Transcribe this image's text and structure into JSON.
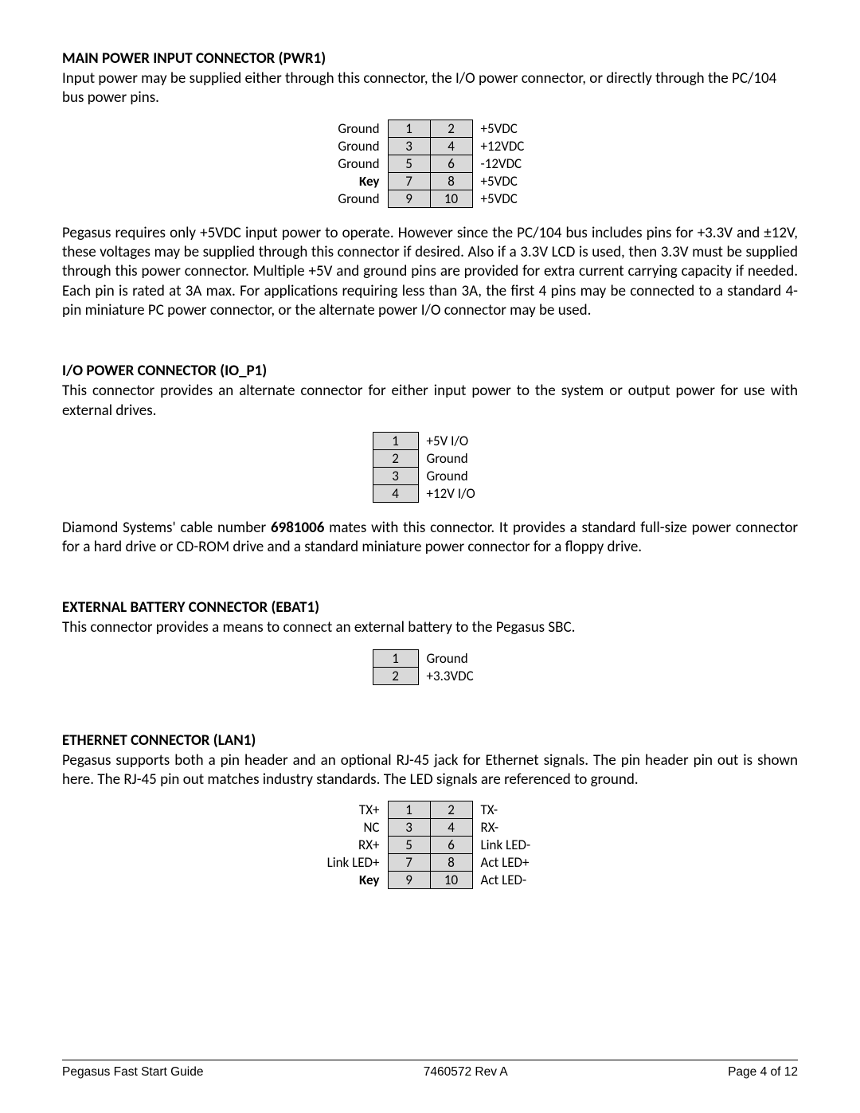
{
  "sections": {
    "pwr1": {
      "heading": "MAIN POWER INPUT CONNECTOR (PWR1)",
      "intro": "Input power may be supplied either through this connector, the I/O power connector, or directly through the PC/104 bus power pins.",
      "after_prefix": "Pegasus requires only +5VDC input power to operate.  However since the PC/104 bus includes pins for +3.3V and ",
      "after_suffix": "12V, these voltages may be supplied through this connector if desired.  Also if a 3.3V LCD is used, then 3.3V must be supplied through this power connector.  Multiple +5V and ground pins are provided for extra current carrying capacity if needed.  Each pin is rated at 3A max.  For applications requiring less than 3A, the first 4 pins may be connected to a standard 4-pin miniature PC power connector, or the alternate power I/O connector may be used.",
      "pm_symbol": "±",
      "rows": [
        {
          "left": "Ground",
          "a": "1",
          "b": "2",
          "right": "+5VDC",
          "bold_left": false
        },
        {
          "left": "Ground",
          "a": "3",
          "b": "4",
          "right": "+12VDC",
          "bold_left": false
        },
        {
          "left": "Ground",
          "a": "5",
          "b": "6",
          "right": "-12VDC",
          "bold_left": false
        },
        {
          "left": "Key",
          "a": "7",
          "b": "8",
          "right": "+5VDC",
          "bold_left": true
        },
        {
          "left": "Ground",
          "a": "9",
          "b": "10",
          "right": "+5VDC",
          "bold_left": false
        }
      ]
    },
    "iop1": {
      "heading": "I/O POWER CONNECTOR (IO_P1)",
      "intro": "This connector provides an alternate connector for either input power to the system or output power for use with external drives.",
      "after": "Diamond Systems' cable number 6981006 mates with this connector.  It provides a standard full-size power connector for a hard drive or CD-ROM drive and a standard miniature power connector for a floppy drive.",
      "cable_number": "6981006",
      "after_pre": "Diamond Systems' cable number ",
      "after_post": " mates with this connector.  It provides a standard full-size power connector for a hard drive or CD-ROM drive and a standard miniature power connector for a floppy drive.",
      "rows": [
        {
          "n": "1",
          "label": "+5V I/O"
        },
        {
          "n": "2",
          "label": "Ground"
        },
        {
          "n": "3",
          "label": "Ground"
        },
        {
          "n": "4",
          "label": "+12V I/O"
        }
      ]
    },
    "ebat1": {
      "heading": "EXTERNAL BATTERY CONNECTOR (EBAT1)",
      "intro": "This connector provides a means to connect an external battery to the Pegasus SBC.",
      "rows": [
        {
          "n": "1",
          "label": "Ground"
        },
        {
          "n": "2",
          "label": "+3.3VDC"
        }
      ]
    },
    "lan1": {
      "heading": "ETHERNET CONNECTOR (LAN1)",
      "intro": "Pegasus supports both a pin header and an optional RJ-45 jack for Ethernet signals.  The pin header pin out is shown here.  The RJ-45 pin out matches industry standards.  The LED signals are referenced to ground.",
      "rows": [
        {
          "left": "TX+",
          "a": "1",
          "b": "2",
          "right": "TX-",
          "bold_left": false
        },
        {
          "left": "NC",
          "a": "3",
          "b": "4",
          "right": "RX-",
          "bold_left": false
        },
        {
          "left": "RX+",
          "a": "5",
          "b": "6",
          "right": "Link LED-",
          "bold_left": false
        },
        {
          "left": "Link LED+",
          "a": "7",
          "b": "8",
          "right": "Act LED+",
          "bold_left": false
        },
        {
          "left": "Key",
          "a": "9",
          "b": "10",
          "right": "Act LED-",
          "bold_left": true
        }
      ]
    }
  },
  "footer": {
    "left": "Pegasus Fast Start Guide",
    "center": "7460572 Rev A",
    "right": "Page 4 of 12"
  },
  "style": {
    "cell_bg": "#d9d9d9",
    "border": "#000000",
    "text": "#000000"
  }
}
